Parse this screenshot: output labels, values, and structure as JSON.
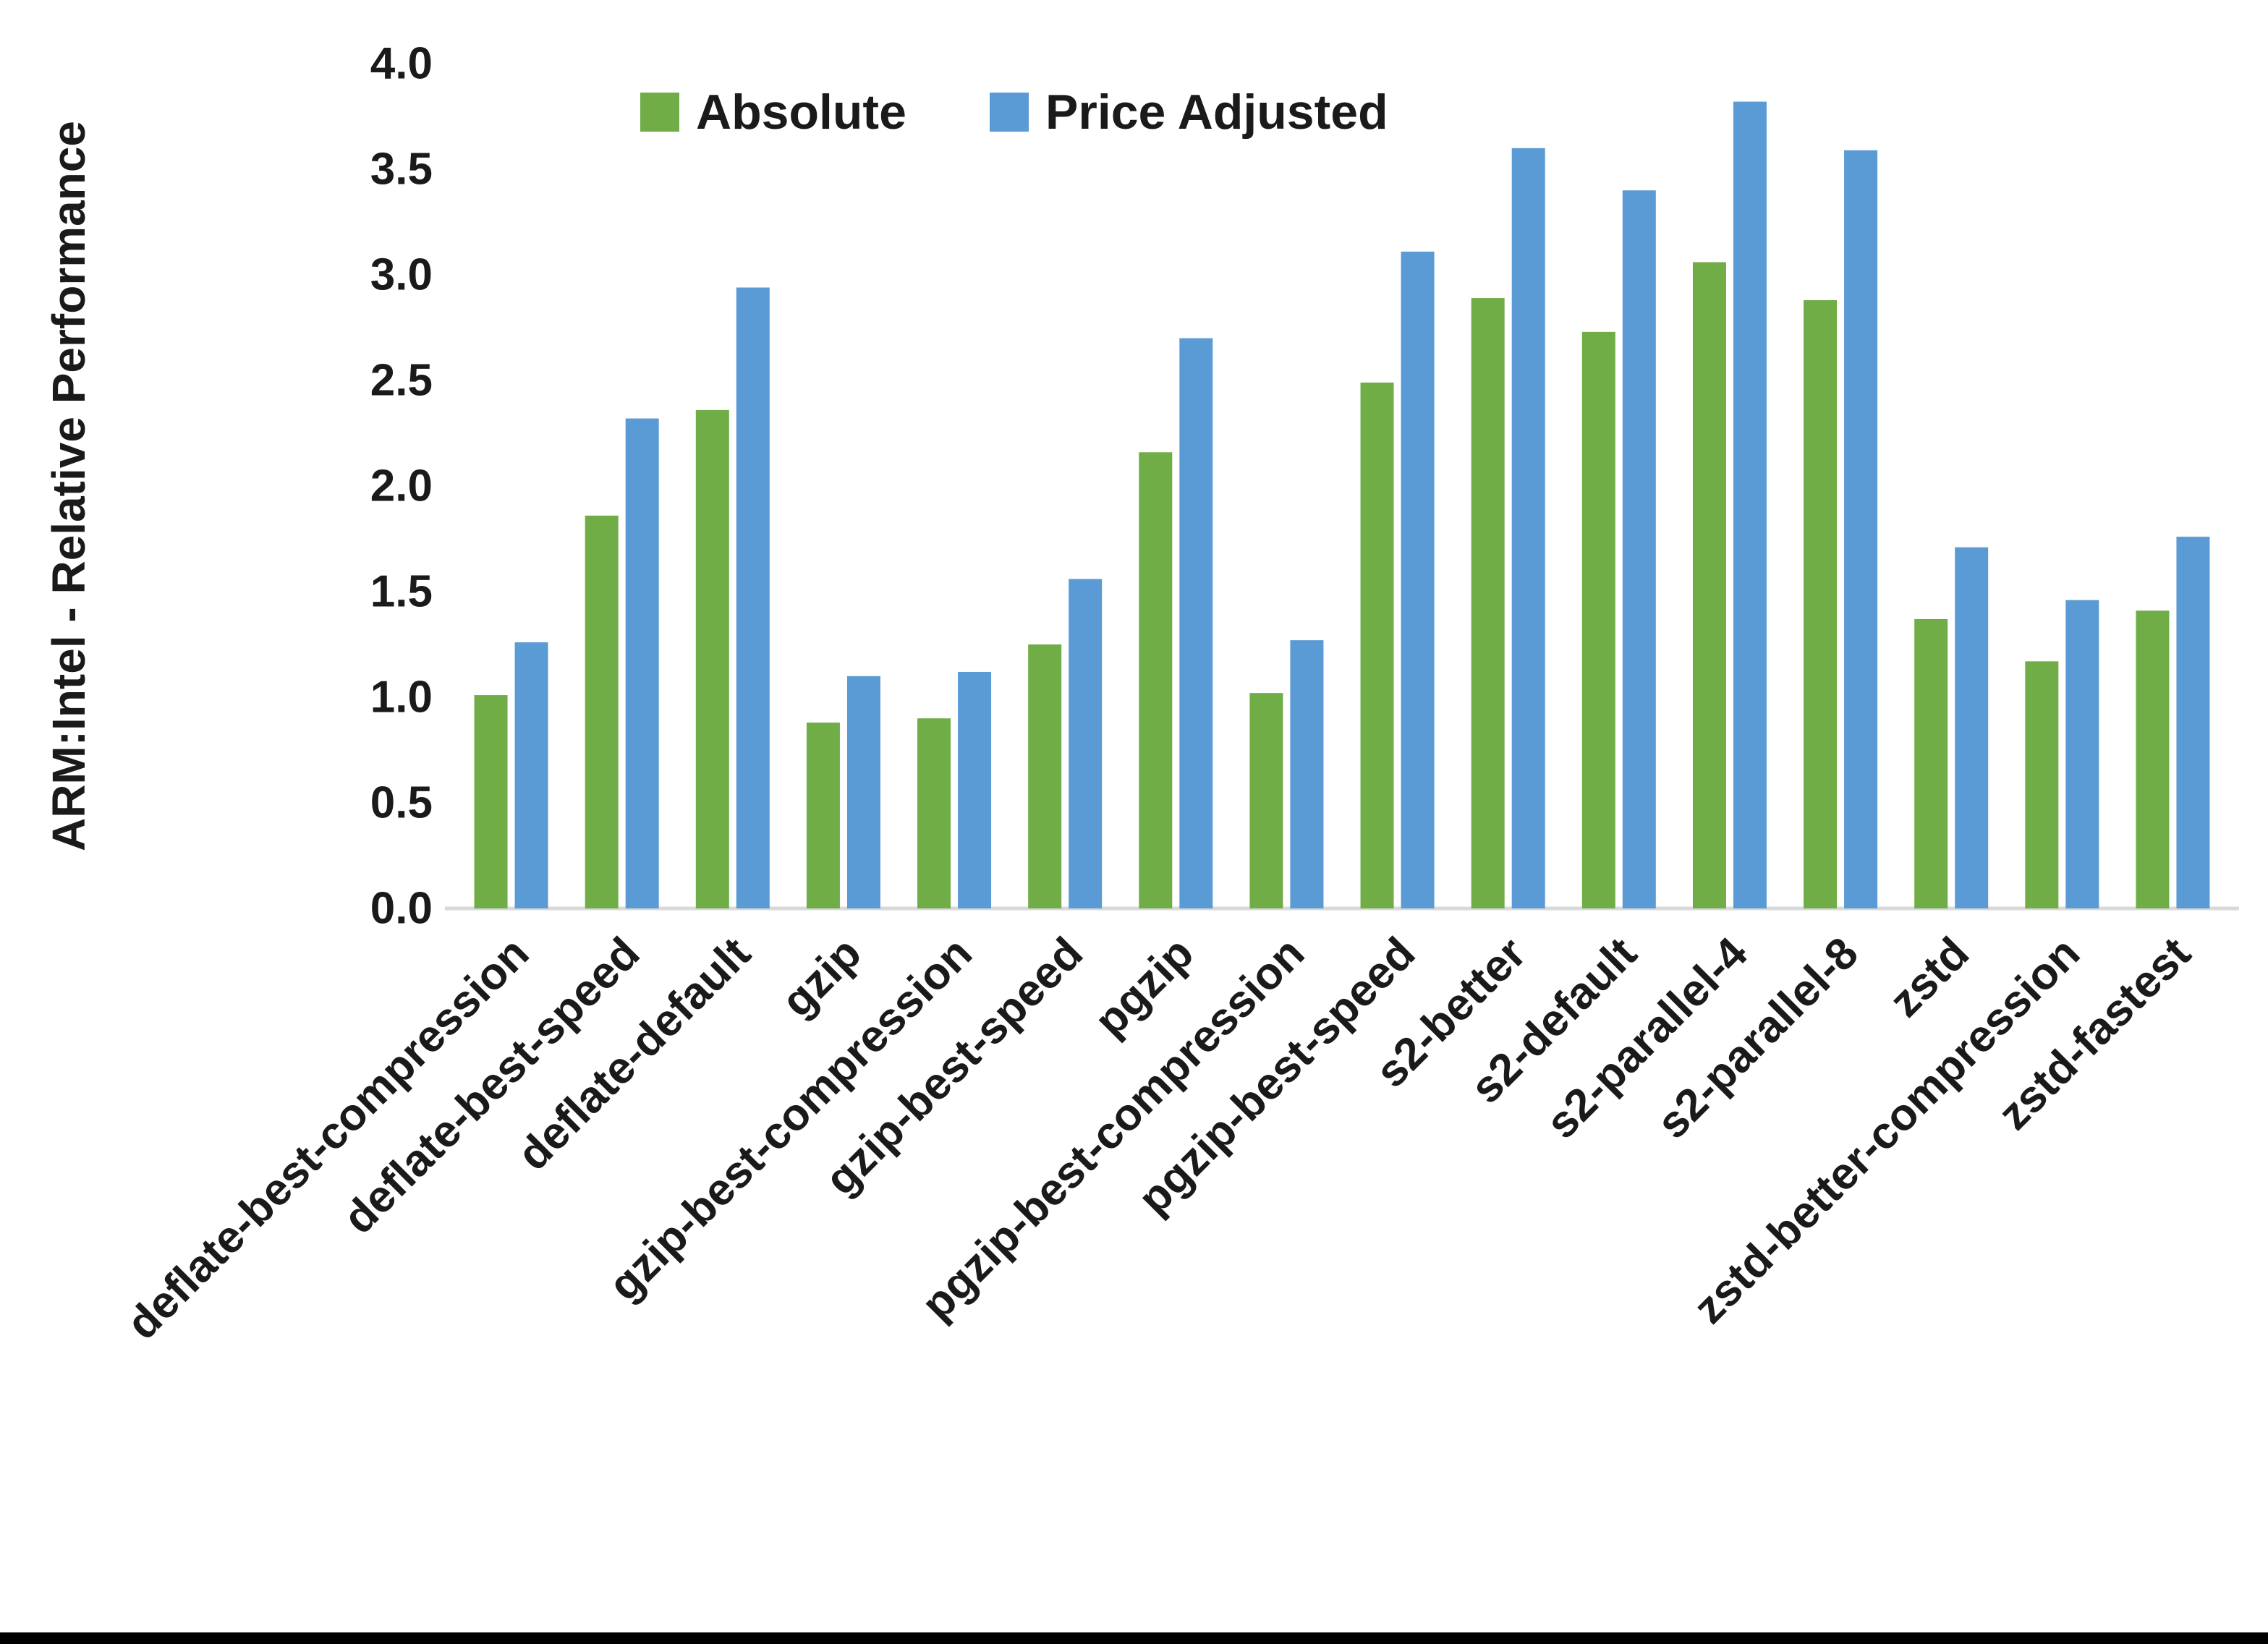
{
  "chart_data": {
    "type": "bar",
    "title": "",
    "xlabel": "",
    "ylabel": "ARM:Intel - Relative Performance",
    "ylim": [
      0.0,
      4.0
    ],
    "ytick_step": 0.5,
    "yticks": [
      "0.0",
      "0.5",
      "1.0",
      "1.5",
      "2.0",
      "2.5",
      "3.0",
      "3.5",
      "4.0"
    ],
    "grid": false,
    "legend_position": "top-inside",
    "categories": [
      "deflate-best-compression",
      "deflate-best-speed",
      "deflate-default",
      "gzip",
      "gzip-best-compression",
      "gzip-best-speed",
      "pgzip",
      "pgzip-best-compression",
      "pgzip-best-speed",
      "s2-better",
      "s2-default",
      "s2-parallel-4",
      "s2-parallel-8",
      "zstd",
      "zstd-better-compression",
      "zstd-fastest"
    ],
    "series": [
      {
        "name": "Absolute",
        "color": "#70AD47",
        "values": [
          1.01,
          1.86,
          2.36,
          0.88,
          0.9,
          1.25,
          2.16,
          1.02,
          2.49,
          2.89,
          2.73,
          3.06,
          2.88,
          1.37,
          1.17,
          1.41
        ]
      },
      {
        "name": "Price Adjusted",
        "color": "#5B9BD5",
        "values": [
          1.26,
          2.32,
          2.94,
          1.1,
          1.12,
          1.56,
          2.7,
          1.27,
          3.11,
          3.6,
          3.4,
          3.82,
          3.59,
          1.71,
          1.46,
          1.76
        ]
      }
    ]
  },
  "colors": {
    "axis_line": "#D9D9D9",
    "text": "#1a1a1a",
    "background": "#FFFFFF",
    "bottom_bar": "#000000"
  }
}
